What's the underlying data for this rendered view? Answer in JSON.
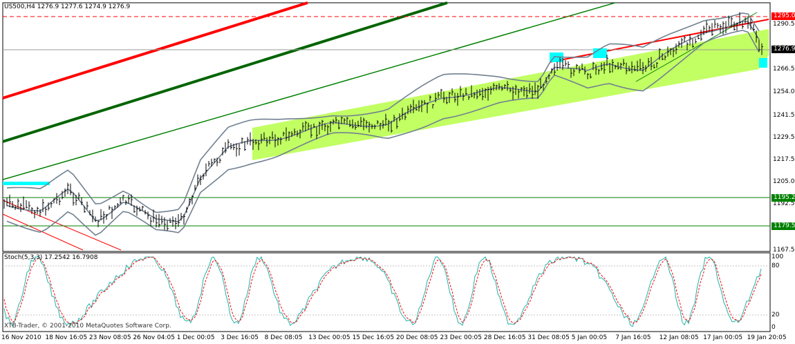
{
  "main_panel": {
    "header": "US500,H4  1276.9 1277.6 1274.9 1276.9",
    "price_ticks": [
      "1290.5",
      "1278.3",
      "1266.5",
      "1254.0",
      "1241.5",
      "1229.5",
      "1217.5",
      "1205.0",
      "1192.5",
      "1180.0",
      "1167.5"
    ],
    "tags": {
      "resistance": "1295.0",
      "last": "1276.9",
      "level1": "1195.2",
      "level2": "1179.5"
    },
    "colors": {
      "red_channel": "#ff0000",
      "green_channel": "#006400",
      "regression_fill": "#adff2f",
      "bollinger": "#708090",
      "levels": "#008000",
      "cyan_marker": "#00ffff"
    }
  },
  "oscillator_panel": {
    "header": "Stoch(5,3,3) 17.2542 16.7908",
    "ticks": [
      "100",
      "80",
      "20",
      "0"
    ],
    "colors": {
      "main_line": "#20b2aa",
      "signal_line": "#ff0000"
    }
  },
  "time_axis": [
    "16 Nov 2010",
    "18 Nov 16:05",
    "23 Nov 08:05",
    "26 Nov 04:05",
    "1 Dec 00:05",
    "3 Dec 16:05",
    "8 Dec 08:05",
    "13 Dec 00:05",
    "15 Dec 16:05",
    "20 Dec 08:05",
    "23 Dec 00:05",
    "28 Dec 16:05",
    "31 Dec 08:05",
    "5 Jan 00:05",
    "7 Jan 16:05",
    "12 Jan 08:05",
    "17 Jan 00:05",
    "19 Jan 20:05"
  ],
  "watermark": "XTB-Trader, © 2001-2010 MetaQuotes Software Corp."
}
